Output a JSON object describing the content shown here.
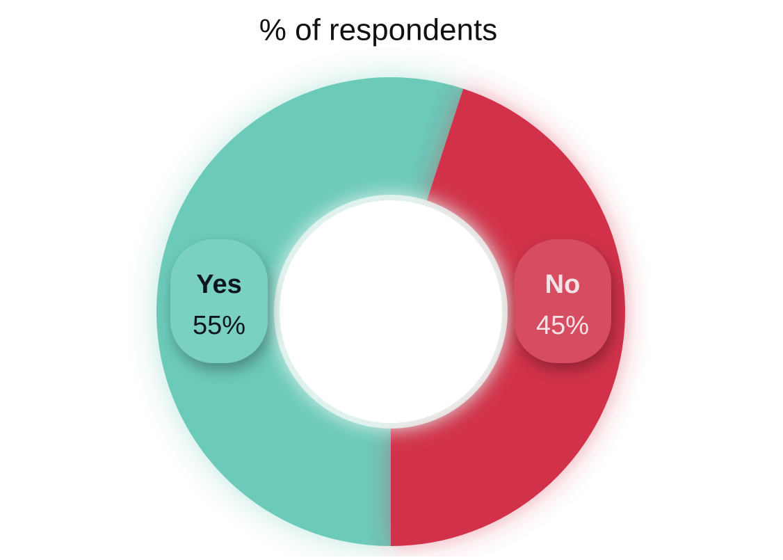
{
  "chart_data": {
    "type": "donut",
    "title": "% of respondents",
    "categories": [
      "Yes",
      "No"
    ],
    "values": [
      55,
      45
    ],
    "value_labels": [
      "55%",
      "45%"
    ],
    "colors": [
      "#6ccab9",
      "#d1334a"
    ]
  }
}
